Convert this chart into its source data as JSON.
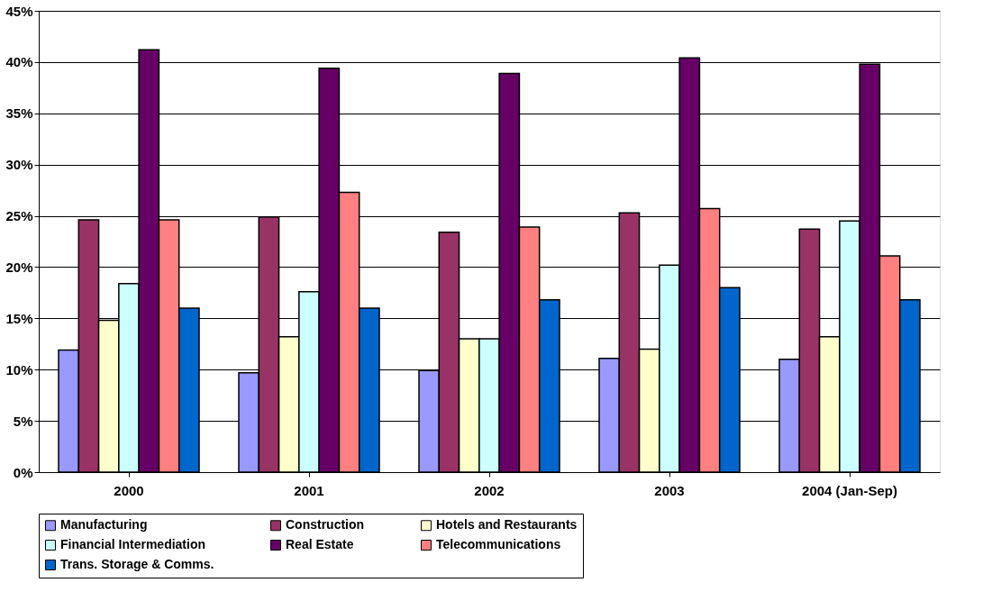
{
  "chart_data": {
    "type": "bar",
    "categories": [
      "2000",
      "2001",
      "2002",
      "2003",
      "2004 (Jan-Sep)"
    ],
    "series": [
      {
        "name": "Manufacturing",
        "color": "#9999ff",
        "values": [
          11.9,
          9.7,
          9.9,
          11.1,
          11.0
        ]
      },
      {
        "name": "Construction",
        "color": "#993366",
        "values": [
          24.6,
          24.9,
          23.4,
          25.3,
          23.7
        ]
      },
      {
        "name": "Hotels and Restaurants",
        "color": "#ffffcc",
        "values": [
          14.8,
          13.2,
          13.0,
          12.0,
          13.2
        ]
      },
      {
        "name": "Financial Intermediation",
        "color": "#ccffff",
        "values": [
          18.4,
          17.6,
          13.0,
          20.2,
          24.5
        ]
      },
      {
        "name": "Real Estate",
        "color": "#660066",
        "values": [
          41.2,
          39.4,
          38.9,
          40.4,
          39.8
        ]
      },
      {
        "name": "Telecommunications",
        "color": "#ff8080",
        "values": [
          24.6,
          27.3,
          23.9,
          25.7,
          21.1
        ]
      },
      {
        "name": "Trans. Storage & Comms.",
        "color": "#0066cc",
        "values": [
          16.0,
          16.0,
          16.8,
          18.0,
          16.8
        ]
      }
    ],
    "ylim": [
      0,
      45
    ],
    "yticks": [
      {
        "value": 0,
        "label": "0%"
      },
      {
        "value": 5,
        "label": "5%"
      },
      {
        "value": 10,
        "label": "10%"
      },
      {
        "value": 15,
        "label": "15%"
      },
      {
        "value": 20,
        "label": "20%"
      },
      {
        "value": 25,
        "label": "25%"
      },
      {
        "value": 30,
        "label": "30%"
      },
      {
        "value": 35,
        "label": "35%"
      },
      {
        "value": 40,
        "label": "40%"
      },
      {
        "value": 45,
        "label": "45%"
      }
    ],
    "grid": "y",
    "legend": "bottom"
  }
}
